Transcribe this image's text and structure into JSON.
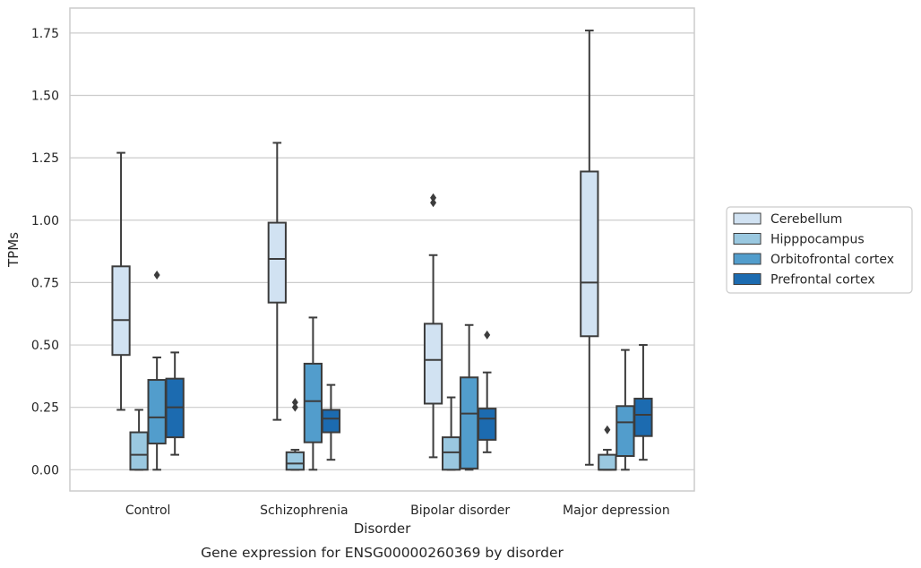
{
  "chart_data": {
    "type": "boxplot",
    "caption": "Gene expression for ENSG00000260369 by disorder",
    "xlabel": "Disorder",
    "ylabel": "TPMs",
    "ylim": [
      -0.085,
      1.85
    ],
    "yticks": [
      0.0,
      0.25,
      0.5,
      0.75,
      1.0,
      1.25,
      1.5,
      1.75
    ],
    "ytick_labels": [
      "0.00",
      "0.25",
      "0.50",
      "0.75",
      "1.00",
      "1.25",
      "1.50",
      "1.75"
    ],
    "categories": [
      "Control",
      "Schizophrenia",
      "Bipolar disorder",
      "Major depression"
    ],
    "grid": "horizontal",
    "legend_position": "right",
    "series": [
      {
        "name": "Cerebellum",
        "color": "#d1e2f2",
        "boxes": [
          {
            "whislo": 0.24,
            "q1": 0.46,
            "med": 0.6,
            "q3": 0.815,
            "whishi": 1.27,
            "fliers": []
          },
          {
            "whislo": 0.2,
            "q1": 0.67,
            "med": 0.845,
            "q3": 0.99,
            "whishi": 1.31,
            "fliers": []
          },
          {
            "whislo": 0.05,
            "q1": 0.265,
            "med": 0.44,
            "q3": 0.585,
            "whishi": 0.86,
            "fliers": [
              1.07,
              1.09
            ]
          },
          {
            "whislo": 0.02,
            "q1": 0.535,
            "med": 0.75,
            "q3": 1.195,
            "whishi": 1.76,
            "fliers": []
          }
        ]
      },
      {
        "name": "Hipppocampus",
        "color": "#9ac8e0",
        "boxes": [
          {
            "whislo": 0.0,
            "q1": 0.0,
            "med": 0.06,
            "q3": 0.15,
            "whishi": 0.24,
            "fliers": []
          },
          {
            "whislo": 0.0,
            "q1": 0.0,
            "med": 0.025,
            "q3": 0.07,
            "whishi": 0.08,
            "fliers": [
              0.25,
              0.27
            ]
          },
          {
            "whislo": 0.0,
            "q1": 0.0,
            "med": 0.07,
            "q3": 0.13,
            "whishi": 0.29,
            "fliers": []
          },
          {
            "whislo": 0.0,
            "q1": 0.0,
            "med": 0.0,
            "q3": 0.06,
            "whishi": 0.08,
            "fliers": [
              0.16
            ]
          }
        ]
      },
      {
        "name": "Orbitofrontal cortex",
        "color": "#529dcc",
        "boxes": [
          {
            "whislo": 0.0,
            "q1": 0.105,
            "med": 0.21,
            "q3": 0.36,
            "whishi": 0.45,
            "fliers": [
              0.78
            ]
          },
          {
            "whislo": 0.0,
            "q1": 0.11,
            "med": 0.275,
            "q3": 0.425,
            "whishi": 0.61,
            "fliers": []
          },
          {
            "whislo": 0.0,
            "q1": 0.005,
            "med": 0.225,
            "q3": 0.37,
            "whishi": 0.58,
            "fliers": []
          },
          {
            "whislo": 0.0,
            "q1": 0.055,
            "med": 0.19,
            "q3": 0.255,
            "whishi": 0.48,
            "fliers": []
          }
        ]
      },
      {
        "name": "Prefrontal cortex",
        "color": "#1c6bb0",
        "boxes": [
          {
            "whislo": 0.06,
            "q1": 0.13,
            "med": 0.25,
            "q3": 0.365,
            "whishi": 0.47,
            "fliers": []
          },
          {
            "whislo": 0.04,
            "q1": 0.15,
            "med": 0.205,
            "q3": 0.24,
            "whishi": 0.34,
            "fliers": []
          },
          {
            "whislo": 0.07,
            "q1": 0.12,
            "med": 0.205,
            "q3": 0.245,
            "whishi": 0.39,
            "fliers": [
              0.54
            ]
          },
          {
            "whislo": 0.04,
            "q1": 0.135,
            "med": 0.22,
            "q3": 0.285,
            "whishi": 0.5,
            "fliers": []
          }
        ]
      }
    ]
  }
}
